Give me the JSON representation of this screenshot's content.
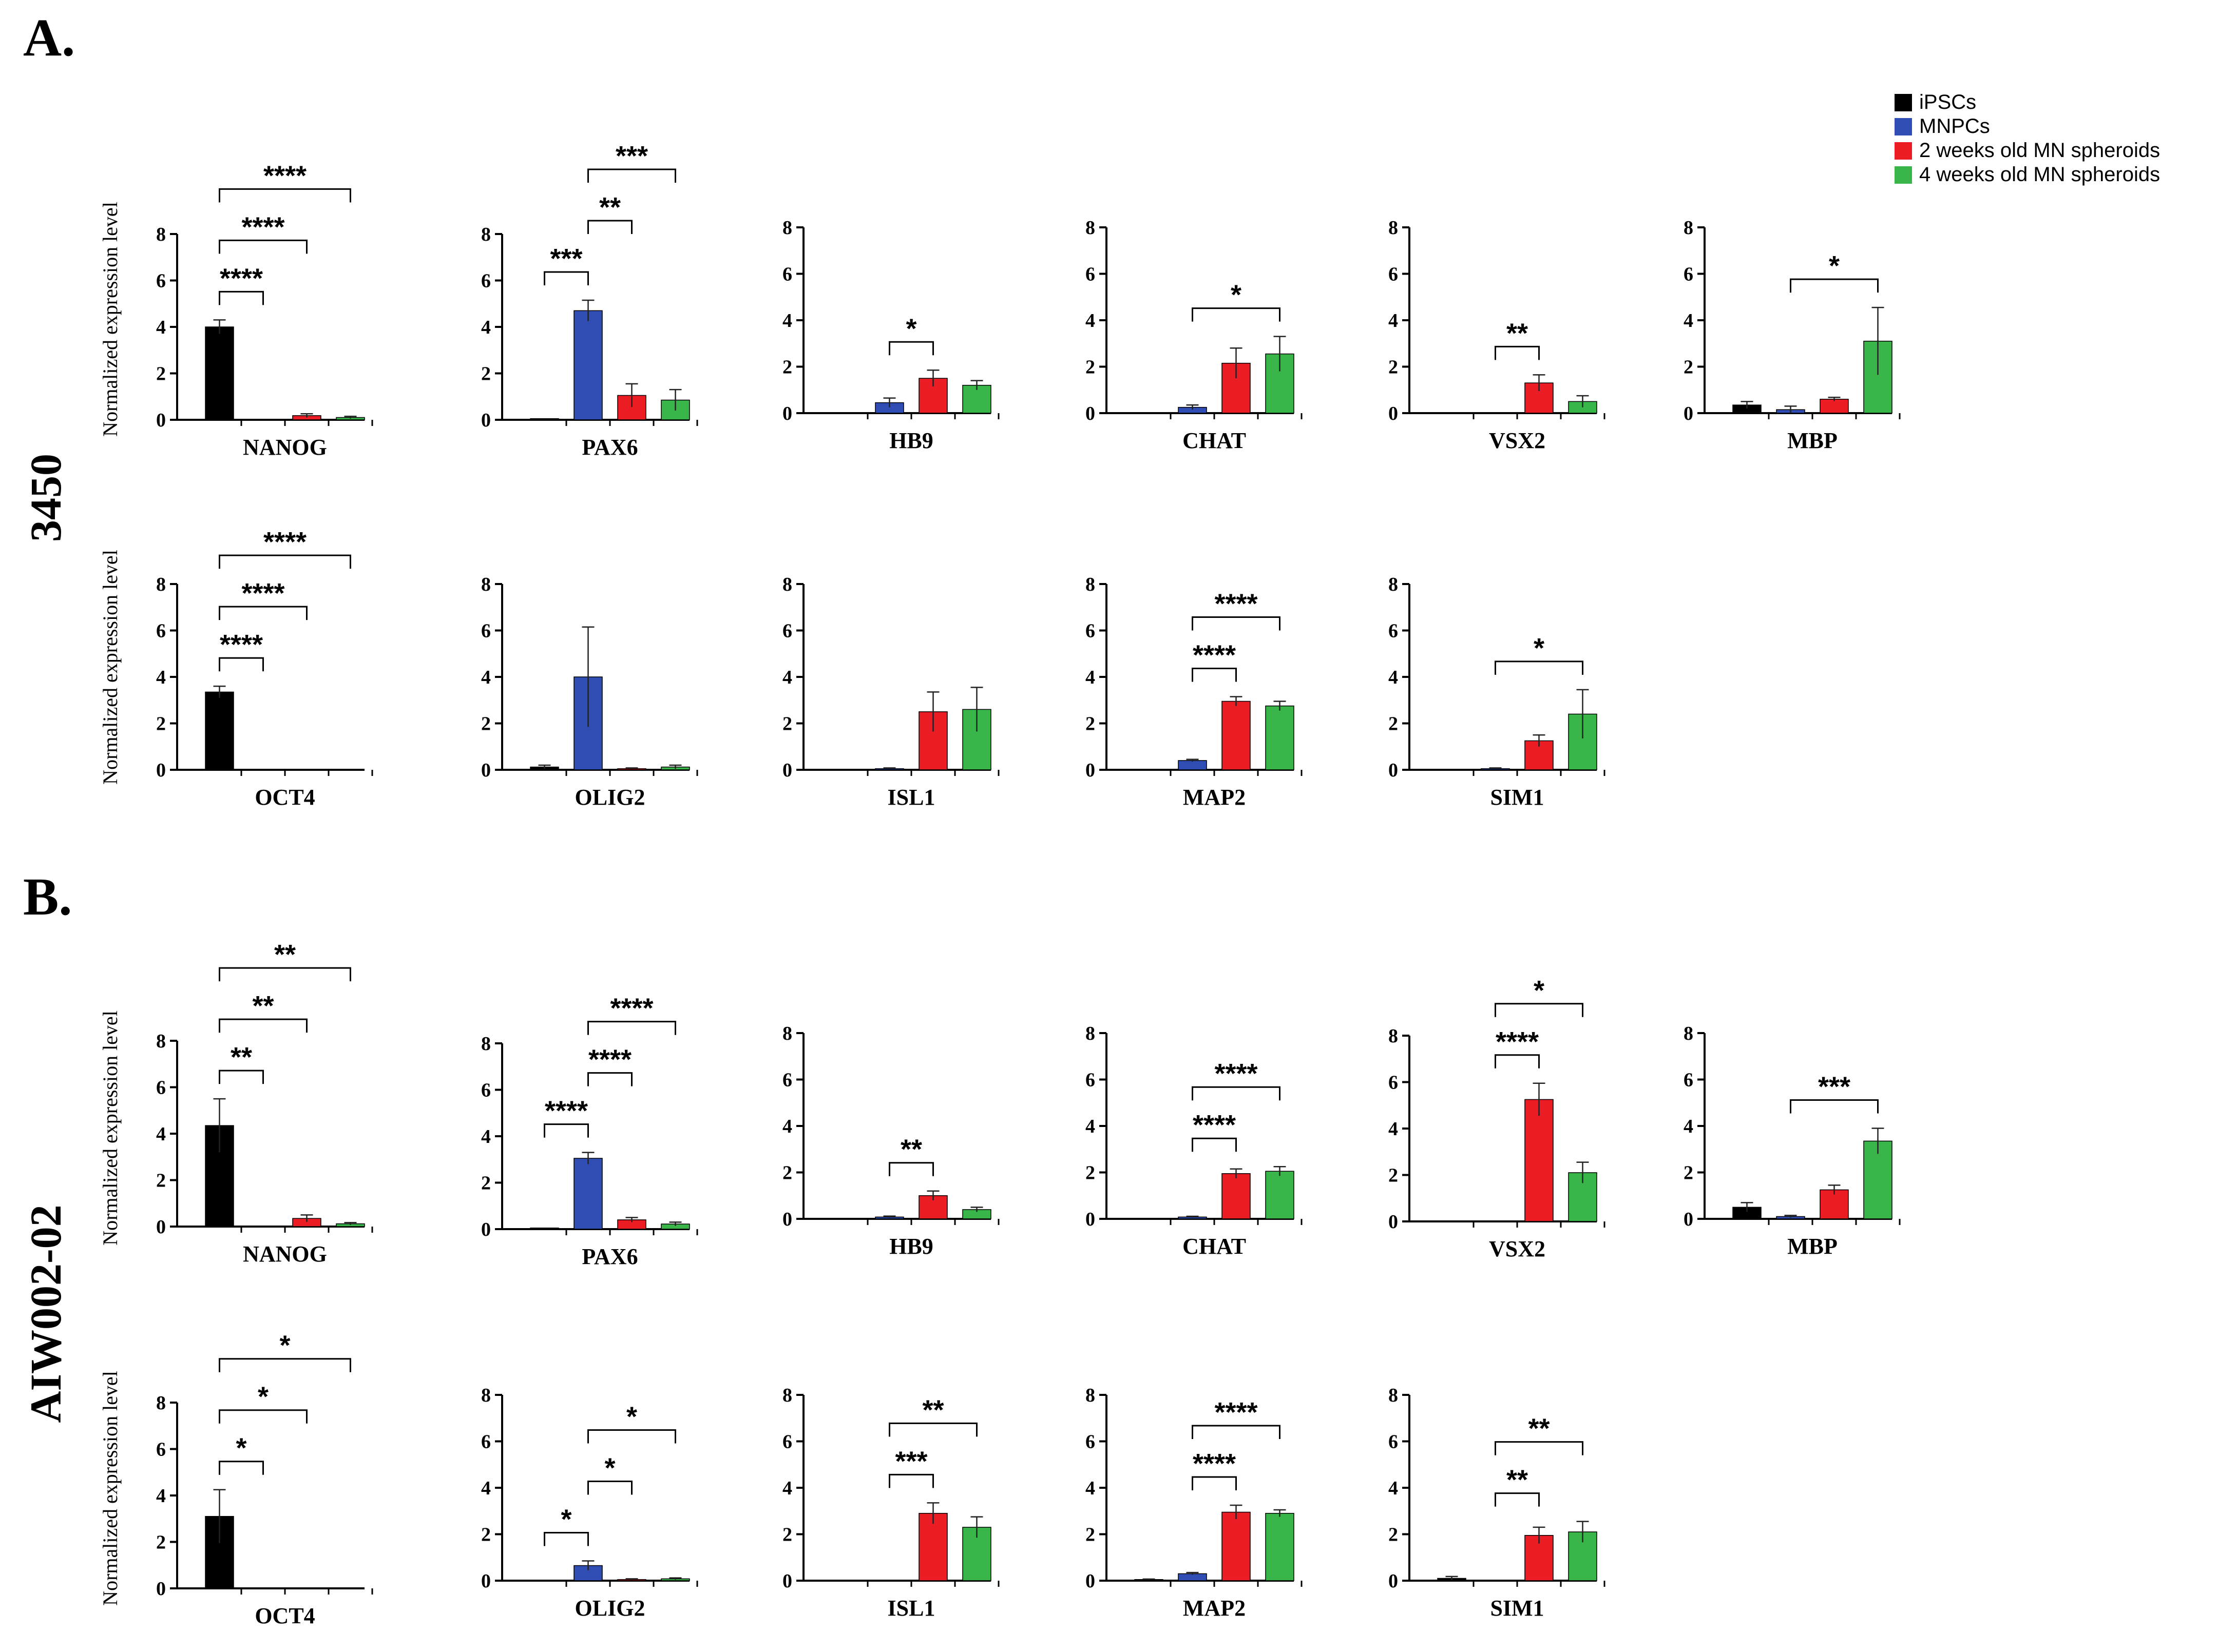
{
  "panels": [
    {
      "label": "A.",
      "cell_line": "3450"
    },
    {
      "label": "B.",
      "cell_line": "AIW002-02"
    }
  ],
  "ylabel": "Normalized expression level",
  "legend": [
    {
      "name": "iPSCs",
      "color": "#000000"
    },
    {
      "name": "MNPCs",
      "color": "#2f4db3"
    },
    {
      "name": "2 weeks old MN spheroids",
      "color": "#ec1c24"
    },
    {
      "name": "4 weeks old MN spheroids",
      "color": "#3ab54a"
    }
  ],
  "chart_data": [
    {
      "type": "bar",
      "panel": "A",
      "gene": "NANOG",
      "ylim": [
        0,
        8
      ],
      "yticks": [
        0,
        2,
        4,
        6,
        8
      ],
      "values": [
        4.0,
        0.0,
        0.18,
        0.1
      ],
      "errors": [
        0.3,
        0,
        0.08,
        0.05
      ],
      "comparisons": [
        {
          "from": 0,
          "to": 1,
          "label": "****"
        },
        {
          "from": 0,
          "to": 2,
          "label": "****"
        },
        {
          "from": 0,
          "to": 3,
          "label": "****"
        }
      ]
    },
    {
      "type": "bar",
      "panel": "A",
      "gene": "PAX6",
      "ylim": [
        0,
        8
      ],
      "yticks": [
        0,
        2,
        4,
        6,
        8
      ],
      "values": [
        0.05,
        4.7,
        1.05,
        0.85
      ],
      "errors": [
        0,
        0.45,
        0.5,
        0.45
      ],
      "comparisons": [
        {
          "from": 0,
          "to": 1,
          "label": "***"
        },
        {
          "from": 1,
          "to": 2,
          "label": "**"
        },
        {
          "from": 1,
          "to": 3,
          "label": "***"
        }
      ]
    },
    {
      "type": "bar",
      "panel": "A",
      "gene": "HB9",
      "ylim": [
        0,
        8
      ],
      "yticks": [
        0,
        2,
        4,
        6,
        8
      ],
      "values": [
        0,
        0.45,
        1.5,
        1.2
      ],
      "errors": [
        0,
        0.2,
        0.35,
        0.2
      ],
      "comparisons": [
        {
          "from": 1,
          "to": 2,
          "label": "*"
        }
      ]
    },
    {
      "type": "bar",
      "panel": "A",
      "gene": "CHAT",
      "ylim": [
        0,
        8
      ],
      "yticks": [
        0,
        2,
        4,
        6,
        8
      ],
      "values": [
        0,
        0.25,
        2.15,
        2.55
      ],
      "errors": [
        0,
        0.1,
        0.65,
        0.75
      ],
      "comparisons": [
        {
          "from": 1,
          "to": 3,
          "label": "*"
        }
      ]
    },
    {
      "type": "bar",
      "panel": "A",
      "gene": "VSX2",
      "ylim": [
        0,
        8
      ],
      "yticks": [
        0,
        2,
        4,
        6,
        8
      ],
      "values": [
        0,
        0,
        1.3,
        0.5
      ],
      "errors": [
        0,
        0,
        0.35,
        0.25
      ],
      "comparisons": [
        {
          "from": 1,
          "to": 2,
          "label": "**"
        }
      ]
    },
    {
      "type": "bar",
      "panel": "A",
      "gene": "MBP",
      "ylim": [
        0,
        8
      ],
      "yticks": [
        0,
        2,
        4,
        6,
        8
      ],
      "values": [
        0.35,
        0.15,
        0.6,
        3.1
      ],
      "errors": [
        0.15,
        0.15,
        0.08,
        1.45
      ],
      "comparisons": [
        {
          "from": 1,
          "to": 3,
          "label": "*"
        }
      ]
    },
    {
      "type": "bar",
      "panel": "A",
      "gene": "OCT4",
      "ylim": [
        0,
        8
      ],
      "yticks": [
        0,
        2,
        4,
        6,
        8
      ],
      "values": [
        3.35,
        0,
        0,
        0
      ],
      "errors": [
        0.25,
        0,
        0,
        0
      ],
      "comparisons": [
        {
          "from": 0,
          "to": 1,
          "label": "****"
        },
        {
          "from": 0,
          "to": 2,
          "label": "****"
        },
        {
          "from": 0,
          "to": 3,
          "label": "****"
        }
      ]
    },
    {
      "type": "bar",
      "panel": "A",
      "gene": "OLIG2",
      "ylim": [
        0,
        8
      ],
      "yticks": [
        0,
        2,
        4,
        6,
        8
      ],
      "values": [
        0.12,
        4.0,
        0.05,
        0.12
      ],
      "errors": [
        0.08,
        2.15,
        0.03,
        0.08
      ],
      "comparisons": []
    },
    {
      "type": "bar",
      "panel": "A",
      "gene": "ISL1",
      "ylim": [
        0,
        8
      ],
      "yticks": [
        0,
        2,
        4,
        6,
        8
      ],
      "values": [
        0,
        0.05,
        2.5,
        2.6
      ],
      "errors": [
        0,
        0.03,
        0.85,
        0.95
      ],
      "comparisons": []
    },
    {
      "type": "bar",
      "panel": "A",
      "gene": "MAP2",
      "ylim": [
        0,
        8
      ],
      "yticks": [
        0,
        2,
        4,
        6,
        8
      ],
      "values": [
        0,
        0.4,
        2.95,
        2.75
      ],
      "errors": [
        0,
        0.05,
        0.2,
        0.2
      ],
      "comparisons": [
        {
          "from": 1,
          "to": 2,
          "label": "****"
        },
        {
          "from": 1,
          "to": 3,
          "label": "****"
        }
      ]
    },
    {
      "type": "bar",
      "panel": "A",
      "gene": "SIM1",
      "ylim": [
        0,
        8
      ],
      "yticks": [
        0,
        2,
        4,
        6,
        8
      ],
      "values": [
        0,
        0.05,
        1.25,
        2.4
      ],
      "errors": [
        0,
        0.03,
        0.25,
        1.05
      ],
      "comparisons": [
        {
          "from": 1,
          "to": 3,
          "label": "*"
        }
      ]
    },
    {
      "type": "bar",
      "panel": "B",
      "gene": "NANOG",
      "ylim": [
        0,
        8
      ],
      "yticks": [
        0,
        2,
        4,
        6,
        8
      ],
      "values": [
        4.35,
        0,
        0.35,
        0.12
      ],
      "errors": [
        1.15,
        0,
        0.15,
        0.05
      ],
      "comparisons": [
        {
          "from": 0,
          "to": 1,
          "label": "**"
        },
        {
          "from": 0,
          "to": 2,
          "label": "**"
        },
        {
          "from": 0,
          "to": 3,
          "label": "**"
        }
      ]
    },
    {
      "type": "bar",
      "panel": "B",
      "gene": "PAX6",
      "ylim": [
        0,
        8
      ],
      "yticks": [
        0,
        2,
        4,
        6,
        8
      ],
      "values": [
        0.05,
        3.05,
        0.4,
        0.22
      ],
      "errors": [
        0,
        0.25,
        0.1,
        0.08
      ],
      "comparisons": [
        {
          "from": 0,
          "to": 1,
          "label": "****"
        },
        {
          "from": 1,
          "to": 2,
          "label": "****"
        },
        {
          "from": 1,
          "to": 3,
          "label": "****"
        }
      ]
    },
    {
      "type": "bar",
      "panel": "B",
      "gene": "HB9",
      "ylim": [
        0,
        8
      ],
      "yticks": [
        0,
        2,
        4,
        6,
        8
      ],
      "values": [
        0,
        0.08,
        1.0,
        0.4
      ],
      "errors": [
        0,
        0.04,
        0.2,
        0.1
      ],
      "comparisons": [
        {
          "from": 1,
          "to": 2,
          "label": "**"
        }
      ]
    },
    {
      "type": "bar",
      "panel": "B",
      "gene": "CHAT",
      "ylim": [
        0,
        8
      ],
      "yticks": [
        0,
        2,
        4,
        6,
        8
      ],
      "values": [
        0,
        0.08,
        1.95,
        2.05
      ],
      "errors": [
        0,
        0.03,
        0.2,
        0.2
      ],
      "comparisons": [
        {
          "from": 1,
          "to": 2,
          "label": "****"
        },
        {
          "from": 1,
          "to": 3,
          "label": "****"
        }
      ]
    },
    {
      "type": "bar",
      "panel": "B",
      "gene": "VSX2",
      "ylim": [
        0,
        8
      ],
      "yticks": [
        0,
        2,
        4,
        6,
        8
      ],
      "values": [
        0,
        0,
        5.25,
        2.1
      ],
      "errors": [
        0,
        0,
        0.7,
        0.45
      ],
      "comparisons": [
        {
          "from": 1,
          "to": 2,
          "label": "****"
        },
        {
          "from": 1,
          "to": 3,
          "label": "*"
        }
      ]
    },
    {
      "type": "bar",
      "panel": "B",
      "gene": "MBP",
      "ylim": [
        0,
        8
      ],
      "yticks": [
        0,
        2,
        4,
        6,
        8
      ],
      "values": [
        0.5,
        0.1,
        1.25,
        3.35
      ],
      "errors": [
        0.2,
        0.05,
        0.2,
        0.55
      ],
      "comparisons": [
        {
          "from": 1,
          "to": 3,
          "label": "***"
        }
      ]
    },
    {
      "type": "bar",
      "panel": "B",
      "gene": "OCT4",
      "ylim": [
        0,
        8
      ],
      "yticks": [
        0,
        2,
        4,
        6,
        8
      ],
      "values": [
        3.1,
        0,
        0,
        0
      ],
      "errors": [
        1.15,
        0,
        0,
        0
      ],
      "comparisons": [
        {
          "from": 0,
          "to": 1,
          "label": "*"
        },
        {
          "from": 0,
          "to": 2,
          "label": "*"
        },
        {
          "from": 0,
          "to": 3,
          "label": "*"
        }
      ]
    },
    {
      "type": "bar",
      "panel": "B",
      "gene": "OLIG2",
      "ylim": [
        0,
        8
      ],
      "yticks": [
        0,
        2,
        4,
        6,
        8
      ],
      "values": [
        0,
        0.65,
        0.05,
        0.08
      ],
      "errors": [
        0,
        0.2,
        0.03,
        0.04
      ],
      "comparisons": [
        {
          "from": 0,
          "to": 1,
          "label": "*"
        },
        {
          "from": 1,
          "to": 2,
          "label": "*"
        },
        {
          "from": 1,
          "to": 3,
          "label": "*"
        }
      ]
    },
    {
      "type": "bar",
      "panel": "B",
      "gene": "ISL1",
      "ylim": [
        0,
        8
      ],
      "yticks": [
        0,
        2,
        4,
        6,
        8
      ],
      "values": [
        0,
        0,
        2.9,
        2.3
      ],
      "errors": [
        0,
        0,
        0.45,
        0.45
      ],
      "comparisons": [
        {
          "from": 1,
          "to": 2,
          "label": "***"
        },
        {
          "from": 1,
          "to": 3,
          "label": "**"
        }
      ]
    },
    {
      "type": "bar",
      "panel": "B",
      "gene": "MAP2",
      "ylim": [
        0,
        8
      ],
      "yticks": [
        0,
        2,
        4,
        6,
        8
      ],
      "values": [
        0.05,
        0.3,
        2.95,
        2.9
      ],
      "errors": [
        0.02,
        0.05,
        0.3,
        0.15
      ],
      "comparisons": [
        {
          "from": 1,
          "to": 2,
          "label": "****"
        },
        {
          "from": 1,
          "to": 3,
          "label": "****"
        }
      ]
    },
    {
      "type": "bar",
      "panel": "B",
      "gene": "SIM1",
      "ylim": [
        0,
        8
      ],
      "yticks": [
        0,
        2,
        4,
        6,
        8
      ],
      "values": [
        0.1,
        0,
        1.95,
        2.1
      ],
      "errors": [
        0.08,
        0,
        0.35,
        0.45
      ],
      "comparisons": [
        {
          "from": 1,
          "to": 2,
          "label": "**"
        },
        {
          "from": 1,
          "to": 3,
          "label": "**"
        }
      ]
    }
  ]
}
